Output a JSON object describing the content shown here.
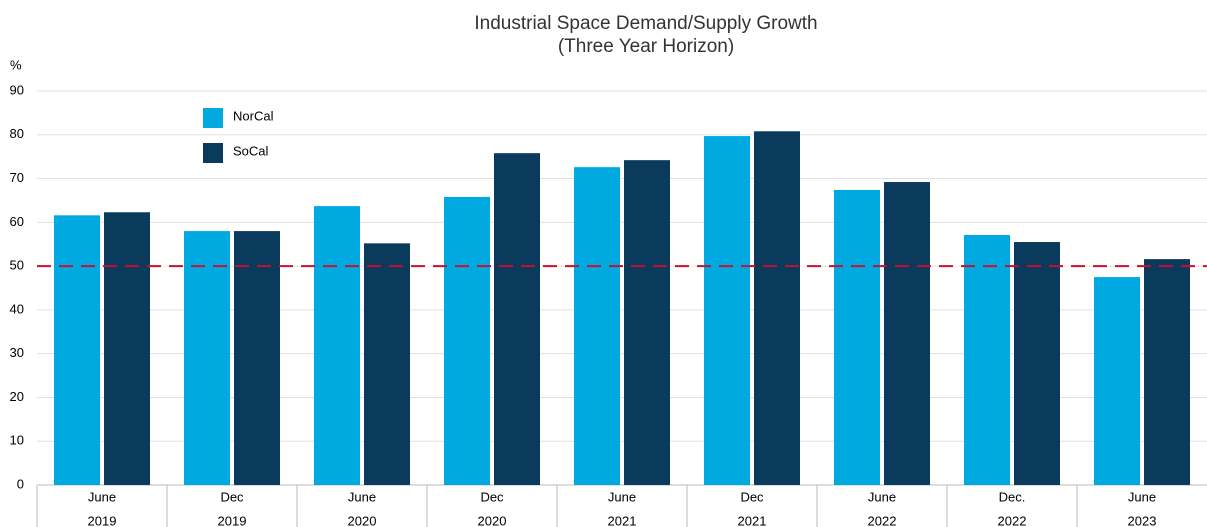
{
  "chart_data": {
    "type": "bar",
    "title": "Industrial Space Demand/Supply Growth",
    "subtitle": "(Three Year Horizon)",
    "y_unit": "%",
    "categories": [
      [
        "June",
        "2019"
      ],
      [
        "Dec",
        "2019"
      ],
      [
        "June",
        "2020"
      ],
      [
        "Dec",
        "2020"
      ],
      [
        "June",
        "2021"
      ],
      [
        "Dec",
        "2021"
      ],
      [
        "June",
        "2022"
      ],
      [
        "Dec.",
        "2022"
      ],
      [
        "June",
        "2023"
      ]
    ],
    "series": [
      {
        "name": "NorCal",
        "color": "#00a9e0",
        "values": [
          61.6,
          58,
          63.7,
          65.8,
          72.6,
          79.7,
          67.4,
          57.1,
          47.5
        ]
      },
      {
        "name": "SoCal",
        "color": "#0a3a5c",
        "values": [
          62.3,
          58,
          55.2,
          75.8,
          74.2,
          80.8,
          69.2,
          55.5,
          51.6
        ]
      }
    ],
    "ylim": [
      0,
      90
    ],
    "yticks": [
      0,
      10,
      20,
      30,
      40,
      50,
      60,
      70,
      80,
      90
    ],
    "grid": true,
    "reference_line": {
      "value": 50,
      "color": "#c8102e"
    },
    "legend": "upper left"
  }
}
